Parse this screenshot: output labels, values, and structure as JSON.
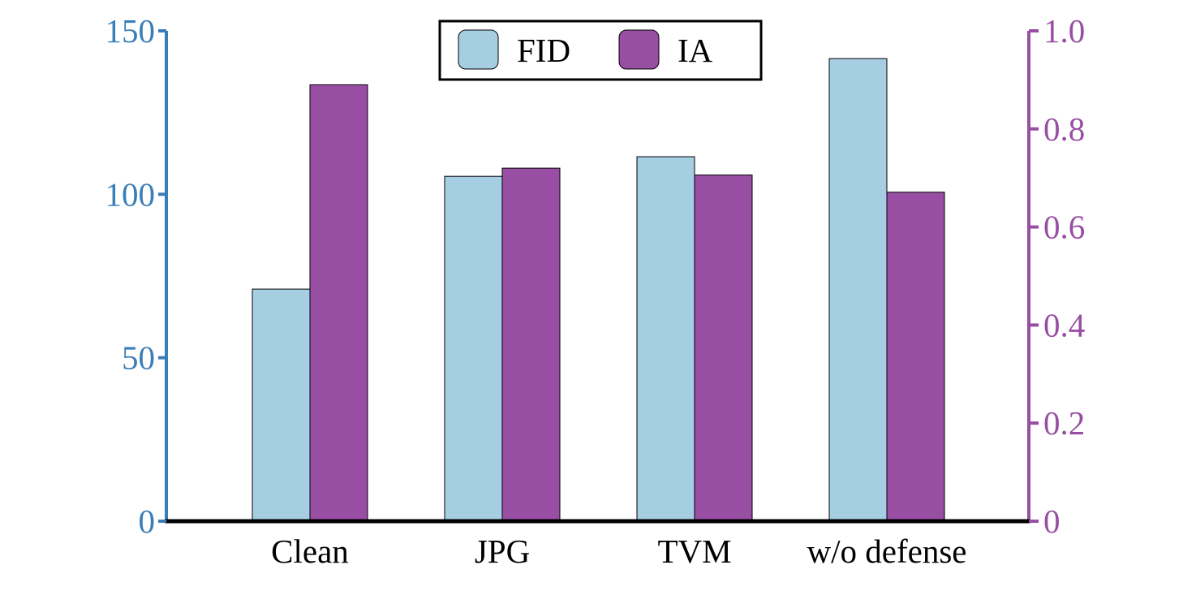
{
  "chart_data": {
    "type": "bar",
    "categories": [
      "Clean",
      "JPG",
      "TVM",
      "w/o defense"
    ],
    "series": [
      {
        "name": "FID",
        "axis": "left",
        "color": "#a6cee3",
        "values": [
          71,
          105.5,
          111.5,
          141.5
        ]
      },
      {
        "name": "IA",
        "axis": "right",
        "color": "#984ea3",
        "values": [
          0.89,
          0.72,
          0.706,
          0.671
        ]
      }
    ],
    "left_axis": {
      "color": "#3a7eb8",
      "ylim": [
        0,
        150
      ],
      "ticks": [
        0,
        50,
        100,
        150
      ],
      "tick_labels": [
        "0",
        "50",
        "100",
        "150"
      ]
    },
    "right_axis": {
      "color": "#984ea3",
      "ylim": [
        0,
        1.0
      ],
      "ticks": [
        0,
        0.2,
        0.4,
        0.6,
        0.8,
        1.0
      ],
      "tick_labels": [
        "0",
        "0.2",
        "0.4",
        "0.6",
        "0.8",
        "1.0"
      ]
    },
    "title": "",
    "xlabel": "",
    "legend": {
      "placement": "top-center",
      "entries": [
        "FID",
        "IA"
      ]
    },
    "grid": false
  }
}
